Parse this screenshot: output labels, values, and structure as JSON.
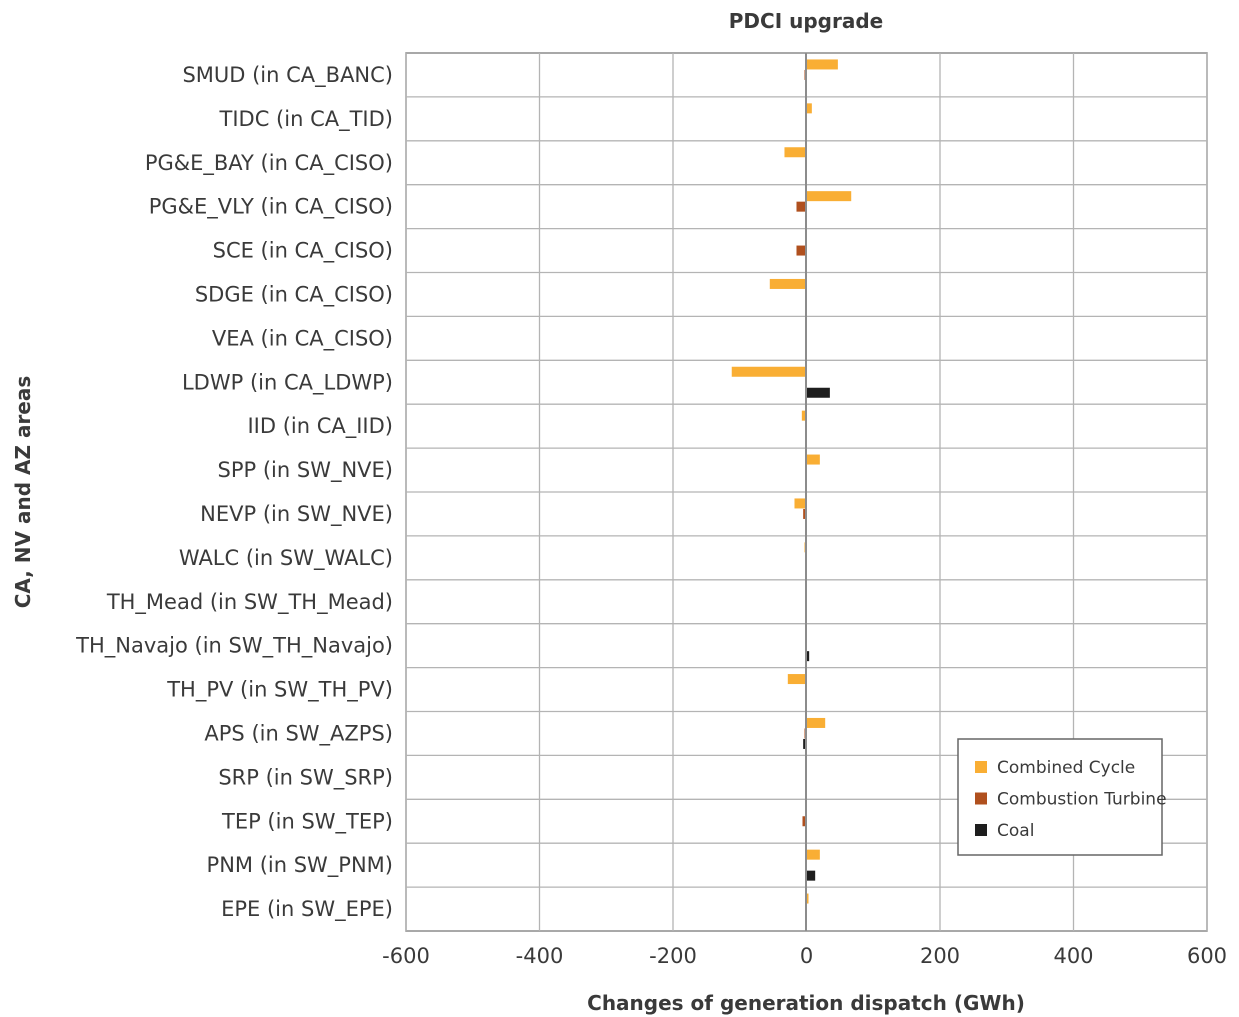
{
  "chart_data": {
    "type": "bar",
    "orientation": "horizontal",
    "title": "PDCI upgrade",
    "xlabel": "Changes of generation dispatch (GWh)",
    "ylabel": "CA, NV and AZ areas",
    "xlim": [
      -600,
      600
    ],
    "xticks": [
      -600,
      -400,
      -200,
      0,
      200,
      400,
      600
    ],
    "grid": true,
    "legend_position": "lower-right",
    "categories": [
      "SMUD (in CA_BANC)",
      "TIDC (in CA_TID)",
      "PG&E_BAY (in CA_CISO)",
      "PG&E_VLY (in CA_CISO)",
      "SCE (in CA_CISO)",
      "SDGE (in CA_CISO)",
      "VEA (in CA_CISO)",
      "LDWP (in CA_LDWP)",
      "IID (in CA_IID)",
      "SPP (in SW_NVE)",
      "NEVP (in SW_NVE)",
      "WALC (in SW_WALC)",
      "TH_Mead (in SW_TH_Mead)",
      "TH_Navajo (in SW_TH_Navajo)",
      "TH_PV (in SW_TH_PV)",
      "APS (in SW_AZPS)",
      "SRP (in SW_SRP)",
      "TEP (in SW_TEP)",
      "PNM (in SW_PNM)",
      "EPE (in SW_EPE)"
    ],
    "series": [
      {
        "name": "Combined Cycle",
        "color": "#F9AE34",
        "values": [
          47,
          8,
          -33,
          67,
          0,
          -55,
          0,
          -112,
          -7,
          20,
          -18,
          -3,
          0,
          0,
          -28,
          28,
          0,
          0,
          20,
          3
        ]
      },
      {
        "name": "Combustion Turbine",
        "color": "#B0501E",
        "values": [
          -3,
          0,
          0,
          -15,
          -15,
          -2,
          0,
          -2,
          0,
          -1,
          -5,
          0,
          0,
          0,
          0,
          -3,
          0,
          -6,
          -2,
          0
        ]
      },
      {
        "name": "Coal",
        "color": "#1E1E1E",
        "values": [
          0,
          0,
          0,
          0,
          0,
          0,
          0,
          35,
          0,
          0,
          0,
          0,
          0,
          4,
          0,
          -5,
          0,
          0,
          13,
          0
        ]
      }
    ]
  }
}
